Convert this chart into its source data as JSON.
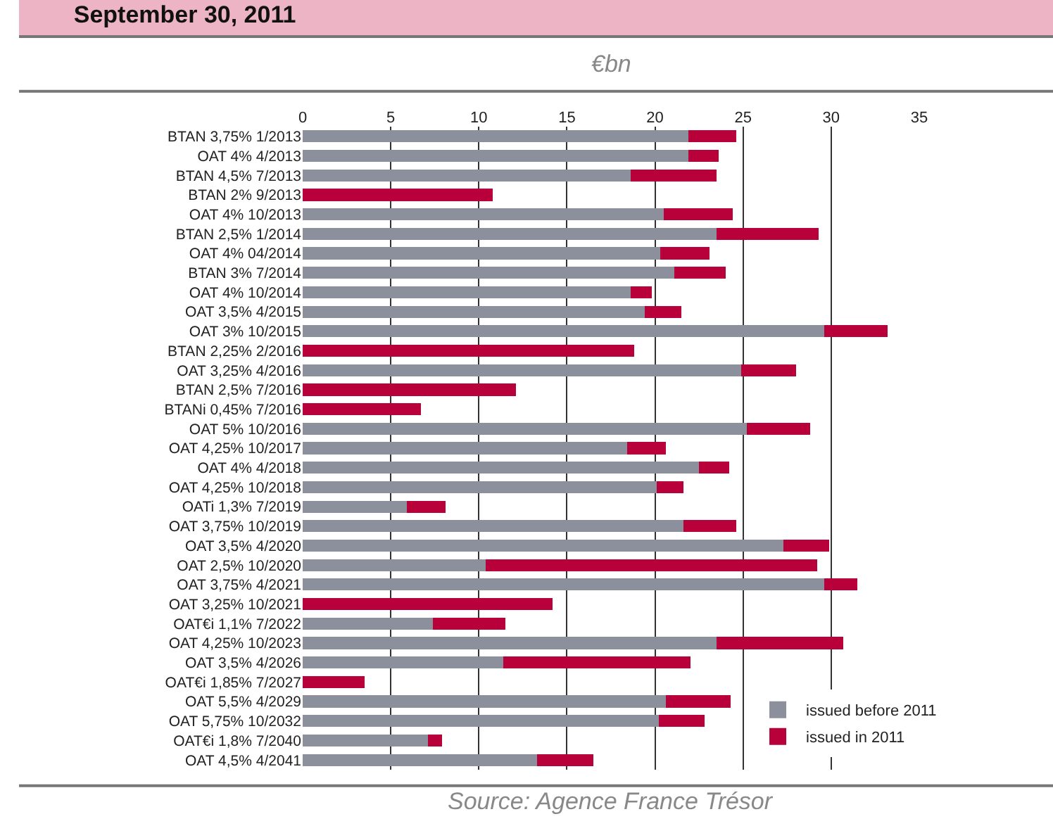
{
  "chart_data": {
    "type": "bar",
    "orientation": "horizontal",
    "stacked": true,
    "title": "September 30, 2011",
    "subtitle": "€bn",
    "categories": [
      "BTAN 3,75% 1/2013",
      "OAT 4% 4/2013",
      "BTAN 4,5% 7/2013",
      "BTAN 2% 9/2013",
      "OAT 4% 10/2013",
      "BTAN 2,5% 1/2014",
      "OAT 4% 04/2014",
      "BTAN 3% 7/2014",
      "OAT 4% 10/2014",
      "OAT 3,5% 4/2015",
      "OAT 3% 10/2015",
      "BTAN 2,25% 2/2016",
      "OAT 3,25% 4/2016",
      "BTAN 2,5% 7/2016",
      "BTANi 0,45% 7/2016",
      "OAT 5% 10/2016",
      "OAT 4,25% 10/2017",
      "OAT 4% 4/2018",
      "OAT 4,25% 10/2018",
      "OATi 1,3% 7/2019",
      "OAT 3,75% 10/2019",
      "OAT 3,5% 4/2020",
      "OAT 2,5% 10/2020",
      "OAT 3,75% 4/2021",
      "OAT 3,25% 10/2021",
      "OAT€i 1,1% 7/2022",
      "OAT 4,25% 10/2023",
      "OAT 3,5% 4/2026",
      "OAT€i 1,85% 7/2027",
      "OAT 5,5% 4/2029",
      "OAT 5,75% 10/2032",
      "OAT€i 1,8% 7/2040",
      "OAT 4,5% 4/2041"
    ],
    "series": [
      {
        "name": "issued before 2011",
        "color": "#8c909c",
        "values": [
          21.9,
          21.9,
          18.6,
          0,
          20.5,
          23.5,
          20.3,
          21.1,
          18.6,
          19.4,
          29.6,
          0,
          24.9,
          0,
          0,
          25.2,
          18.4,
          22.5,
          20.1,
          5.9,
          21.6,
          27.3,
          10.4,
          29.6,
          0,
          7.4,
          23.5,
          11.4,
          0,
          20.6,
          20.2,
          7.1,
          13.3
        ]
      },
      {
        "name": "issued in 2011",
        "color": "#b8003a",
        "values": [
          2.7,
          1.7,
          4.9,
          10.8,
          3.9,
          5.8,
          2.8,
          2.9,
          1.2,
          2.1,
          3.6,
          18.8,
          3.1,
          12.1,
          6.7,
          3.6,
          2.2,
          1.7,
          1.5,
          2.2,
          3.0,
          2.6,
          18.8,
          1.9,
          14.2,
          4.1,
          7.2,
          10.6,
          3.5,
          3.7,
          2.6,
          0.8,
          3.2
        ]
      }
    ],
    "xlim": [
      0,
      35
    ],
    "xticks": [
      0,
      5,
      10,
      15,
      20,
      25,
      30,
      35
    ],
    "grid": "x",
    "legend": "bottom right",
    "annotations": [
      "Source: Agence France Trésor"
    ]
  }
}
